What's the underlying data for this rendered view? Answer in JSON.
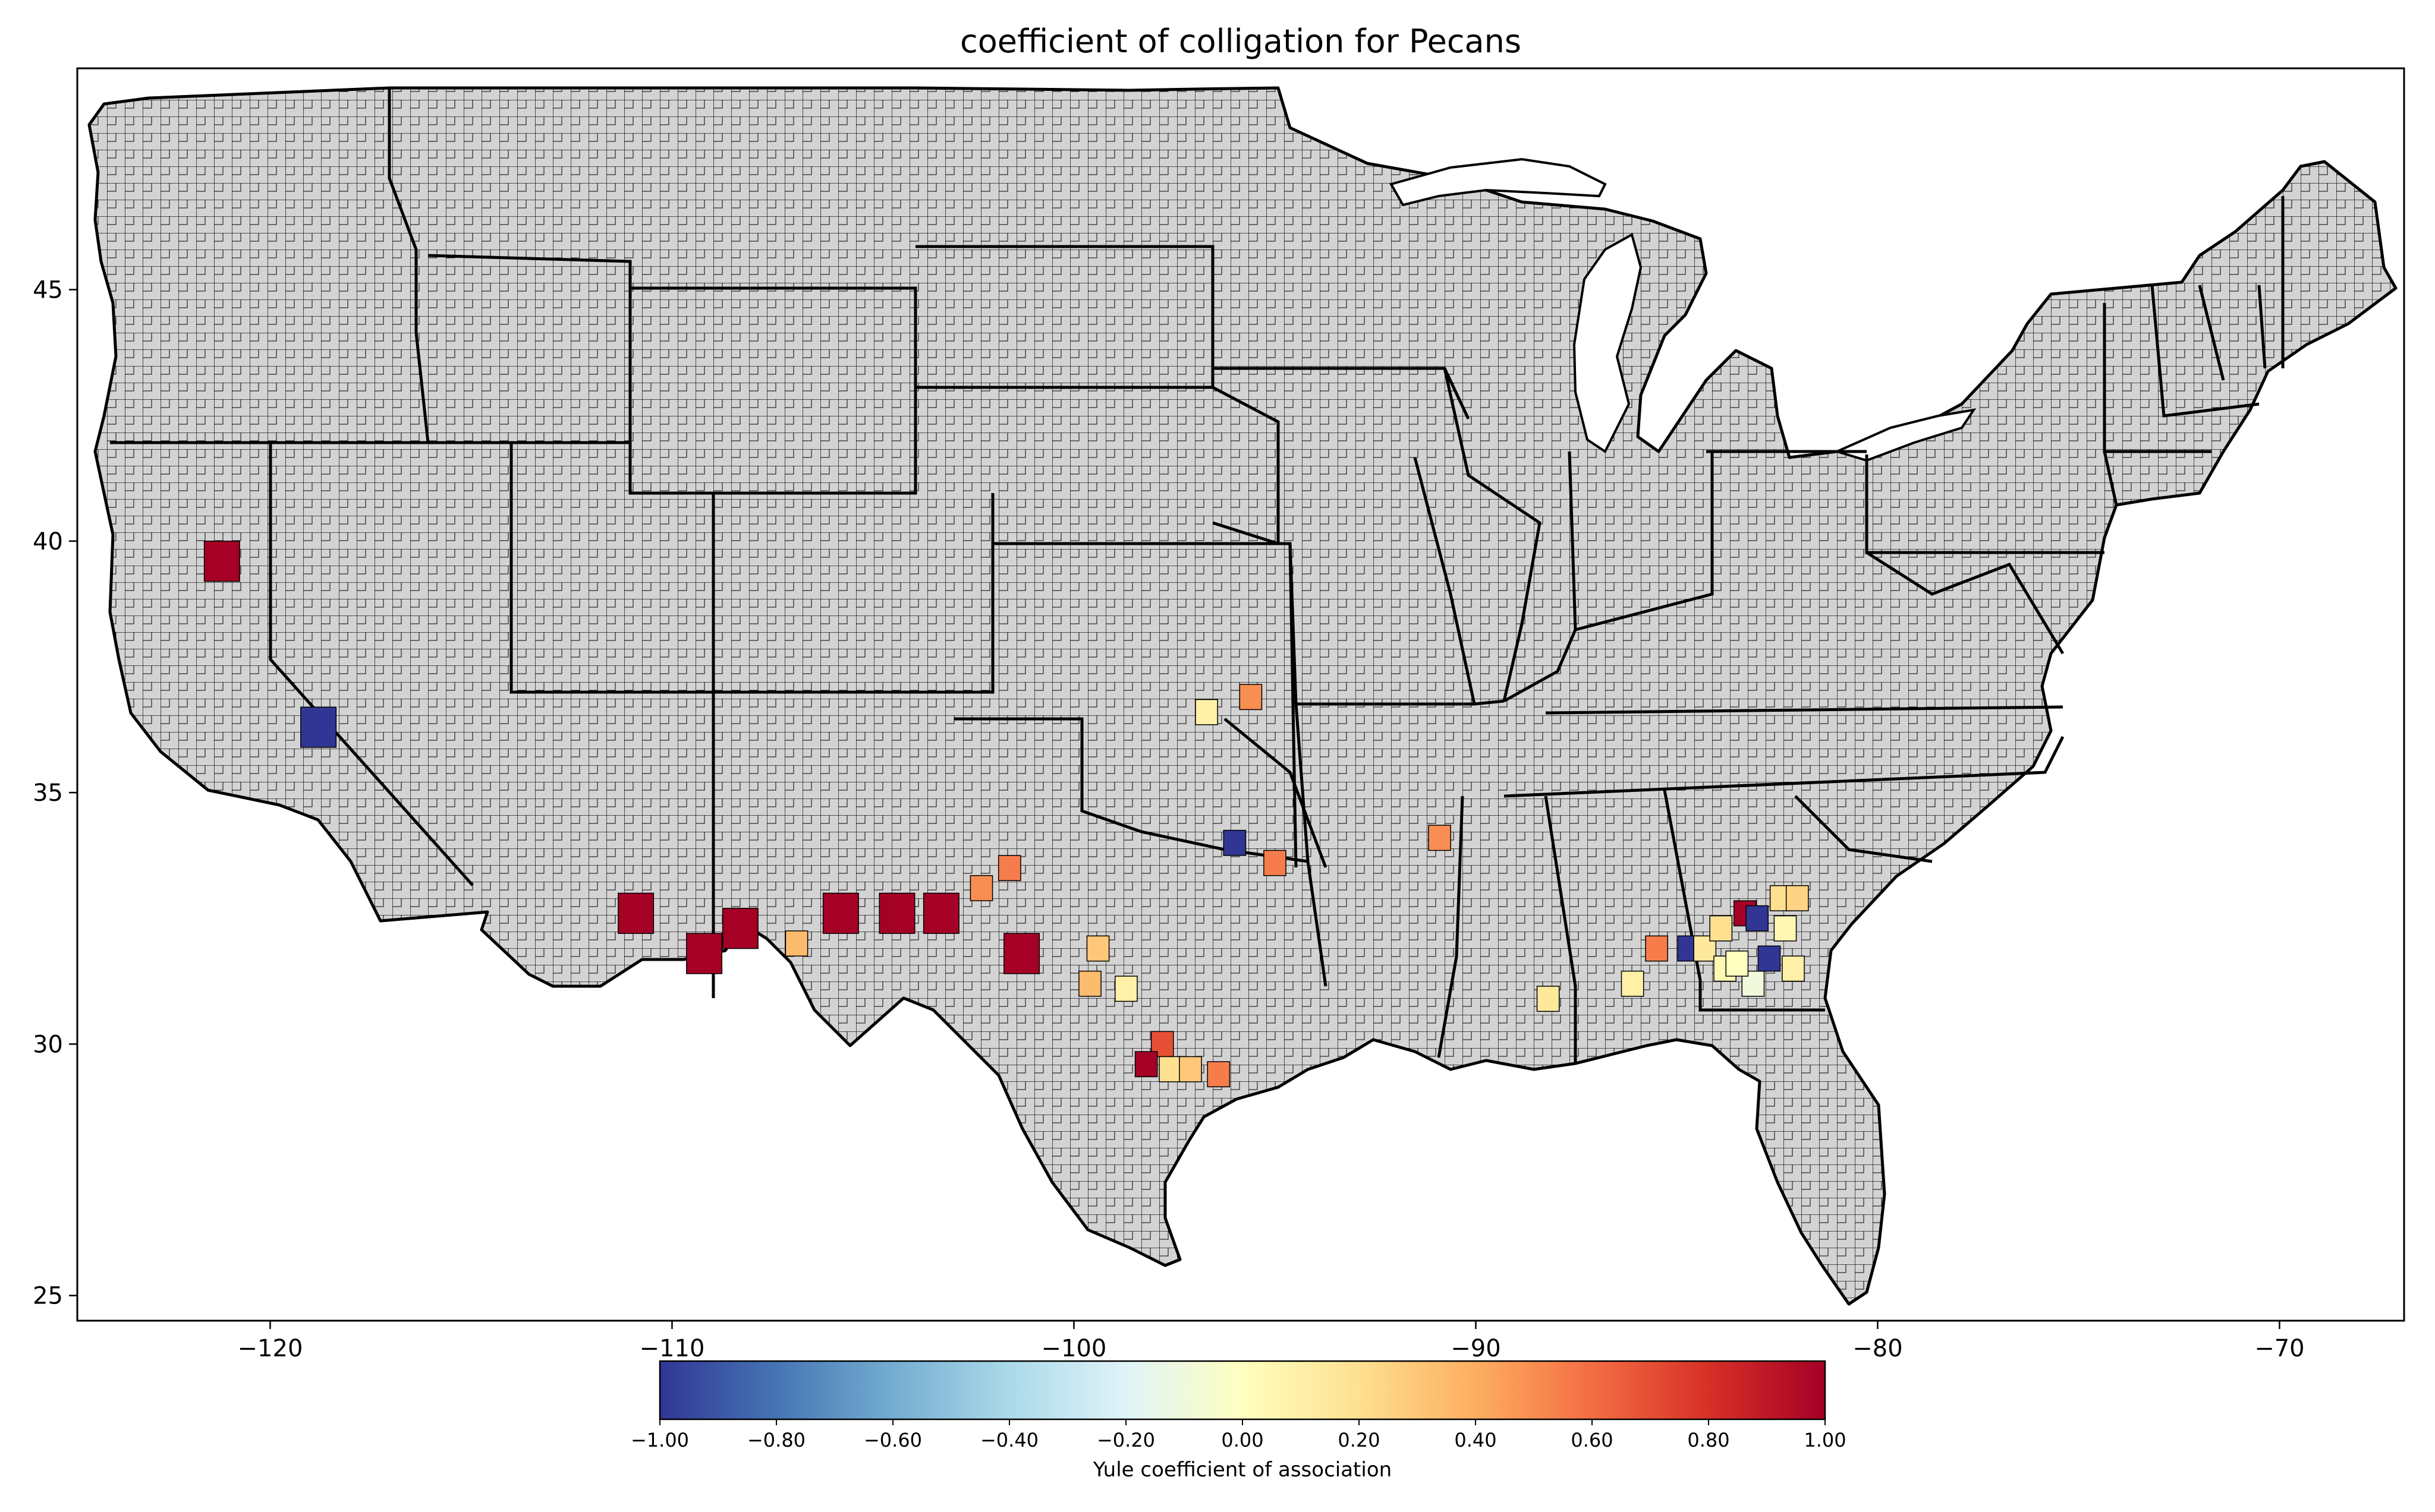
{
  "title": "coefficient of colligation for Pecans",
  "axes": {
    "x_ticks": [
      {
        "value": -120,
        "label": "−120"
      },
      {
        "value": -110,
        "label": "−110"
      },
      {
        "value": -100,
        "label": "−100"
      },
      {
        "value": -90,
        "label": "−90"
      },
      {
        "value": -80,
        "label": "−80"
      },
      {
        "value": -70,
        "label": "−70"
      }
    ],
    "y_ticks": [
      {
        "value": 45,
        "label": "45"
      },
      {
        "value": 40,
        "label": "40"
      },
      {
        "value": 35,
        "label": "35"
      },
      {
        "value": 30,
        "label": "30"
      },
      {
        "value": 25,
        "label": "25"
      }
    ],
    "xlim": [
      -124.8,
      -66.9
    ],
    "ylim": [
      24.5,
      49.4
    ]
  },
  "colorbar": {
    "label": "Yule coefficient of association",
    "range": [
      -1.0,
      1.0
    ],
    "ticks": [
      {
        "value": -1.0,
        "label": "−1.00"
      },
      {
        "value": -0.8,
        "label": "−0.80"
      },
      {
        "value": -0.6,
        "label": "−0.60"
      },
      {
        "value": -0.4,
        "label": "−0.40"
      },
      {
        "value": -0.2,
        "label": "−0.20"
      },
      {
        "value": 0.0,
        "label": "0.00"
      },
      {
        "value": 0.2,
        "label": "0.20"
      },
      {
        "value": 0.4,
        "label": "0.40"
      },
      {
        "value": 0.6,
        "label": "0.60"
      },
      {
        "value": 0.8,
        "label": "0.80"
      },
      {
        "value": 1.0,
        "label": "1.00"
      }
    ],
    "colormap": "RdYlBu_r",
    "stops": [
      "#313695",
      "#4575b4",
      "#74add1",
      "#abd9e9",
      "#e0f3f8",
      "#ffffbf",
      "#fee090",
      "#fdae61",
      "#f46d43",
      "#d73027",
      "#a50026"
    ]
  },
  "colors": {
    "land": "#d3d3d3",
    "county_border": "#000000",
    "state_border": "#000000"
  },
  "map_data": {
    "type": "choropleth",
    "region": "contiguous United States counties",
    "default_fill": "no data",
    "highlighted_counties": [
      {
        "lon": -121.2,
        "lat": 39.6,
        "value": 1.0
      },
      {
        "lon": -118.8,
        "lat": 36.3,
        "value": -1.0
      },
      {
        "lon": -110.9,
        "lat": 32.6,
        "value": 1.0
      },
      {
        "lon": -109.2,
        "lat": 31.8,
        "value": 1.0
      },
      {
        "lon": -108.3,
        "lat": 32.3,
        "value": 1.0
      },
      {
        "lon": -106.9,
        "lat": 32.0,
        "value": 0.35
      },
      {
        "lon": -105.8,
        "lat": 32.6,
        "value": 1.0
      },
      {
        "lon": -104.4,
        "lat": 32.6,
        "value": 1.0
      },
      {
        "lon": -103.3,
        "lat": 32.6,
        "value": 1.0
      },
      {
        "lon": -102.3,
        "lat": 33.1,
        "value": 0.5
      },
      {
        "lon": -101.6,
        "lat": 33.5,
        "value": 0.55
      },
      {
        "lon": -101.3,
        "lat": 31.8,
        "value": 1.0
      },
      {
        "lon": -99.4,
        "lat": 31.9,
        "value": 0.3
      },
      {
        "lon": -99.6,
        "lat": 31.2,
        "value": 0.35
      },
      {
        "lon": -98.7,
        "lat": 31.1,
        "value": 0.1
      },
      {
        "lon": -97.8,
        "lat": 30.0,
        "value": 0.7
      },
      {
        "lon": -98.2,
        "lat": 29.6,
        "value": 1.0
      },
      {
        "lon": -97.6,
        "lat": 29.5,
        "value": 0.2
      },
      {
        "lon": -97.1,
        "lat": 29.5,
        "value": 0.3
      },
      {
        "lon": -96.4,
        "lat": 29.4,
        "value": 0.55
      },
      {
        "lon": -96.7,
        "lat": 36.6,
        "value": 0.1
      },
      {
        "lon": -95.6,
        "lat": 36.9,
        "value": 0.5
      },
      {
        "lon": -96.0,
        "lat": 34.0,
        "value": -1.0
      },
      {
        "lon": -95.0,
        "lat": 33.6,
        "value": 0.55
      },
      {
        "lon": -90.9,
        "lat": 34.1,
        "value": 0.5
      },
      {
        "lon": -88.2,
        "lat": 30.9,
        "value": 0.15
      },
      {
        "lon": -86.1,
        "lat": 31.2,
        "value": 0.1
      },
      {
        "lon": -85.5,
        "lat": 31.9,
        "value": 0.55
      },
      {
        "lon": -84.7,
        "lat": 31.9,
        "value": -1.0
      },
      {
        "lon": -84.3,
        "lat": 31.9,
        "value": 0.15
      },
      {
        "lon": -83.8,
        "lat": 31.5,
        "value": 0.05
      },
      {
        "lon": -83.1,
        "lat": 31.2,
        "value": -0.1
      },
      {
        "lon": -83.9,
        "lat": 32.3,
        "value": 0.2
      },
      {
        "lon": -83.3,
        "lat": 32.6,
        "value": 1.0
      },
      {
        "lon": -83.0,
        "lat": 32.5,
        "value": -1.0
      },
      {
        "lon": -82.4,
        "lat": 32.9,
        "value": 0.2
      },
      {
        "lon": -82.3,
        "lat": 32.3,
        "value": 0.05
      },
      {
        "lon": -82.7,
        "lat": 31.7,
        "value": -1.0
      },
      {
        "lon": -83.5,
        "lat": 31.6,
        "value": 0.0
      },
      {
        "lon": -82.1,
        "lat": 31.5,
        "value": 0.1
      },
      {
        "lon": -82.0,
        "lat": 32.9,
        "value": 0.25
      }
    ]
  }
}
